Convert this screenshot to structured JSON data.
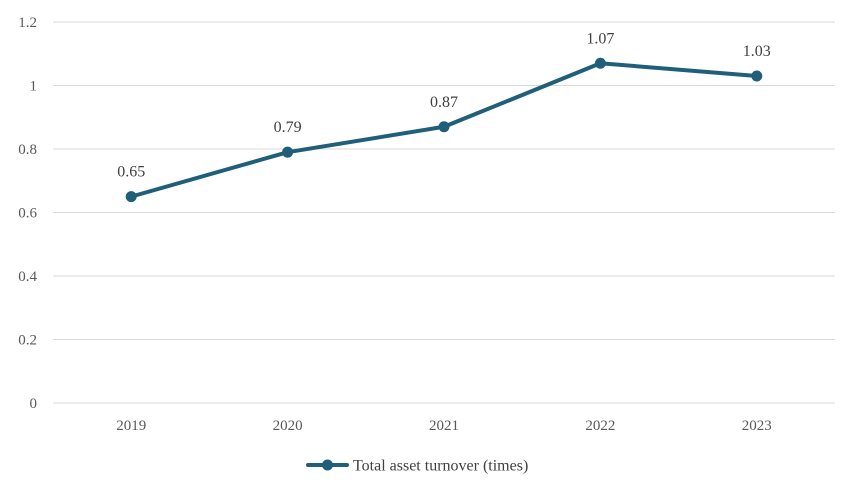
{
  "chart_data": {
    "type": "line",
    "title": "",
    "xlabel": "",
    "ylabel": "",
    "categories": [
      "2019",
      "2020",
      "2021",
      "2022",
      "2023"
    ],
    "series": [
      {
        "name": "Total asset turnover (times)",
        "values": [
          0.65,
          0.79,
          0.87,
          1.07,
          1.03
        ],
        "data_labels": [
          "0.65",
          "0.79",
          "0.87",
          "1.07",
          "1.03"
        ],
        "color": "#1f5f7a",
        "marker": "circle"
      }
    ],
    "ylim": [
      0,
      1.2
    ],
    "yticks": [
      0,
      0.2,
      0.4,
      0.6,
      0.8,
      1,
      1.2
    ],
    "ytick_labels": [
      "0",
      "0.2",
      "0.4",
      "0.6",
      "0.8",
      "1",
      "1.2"
    ],
    "grid": true,
    "legend_position": "bottom"
  }
}
